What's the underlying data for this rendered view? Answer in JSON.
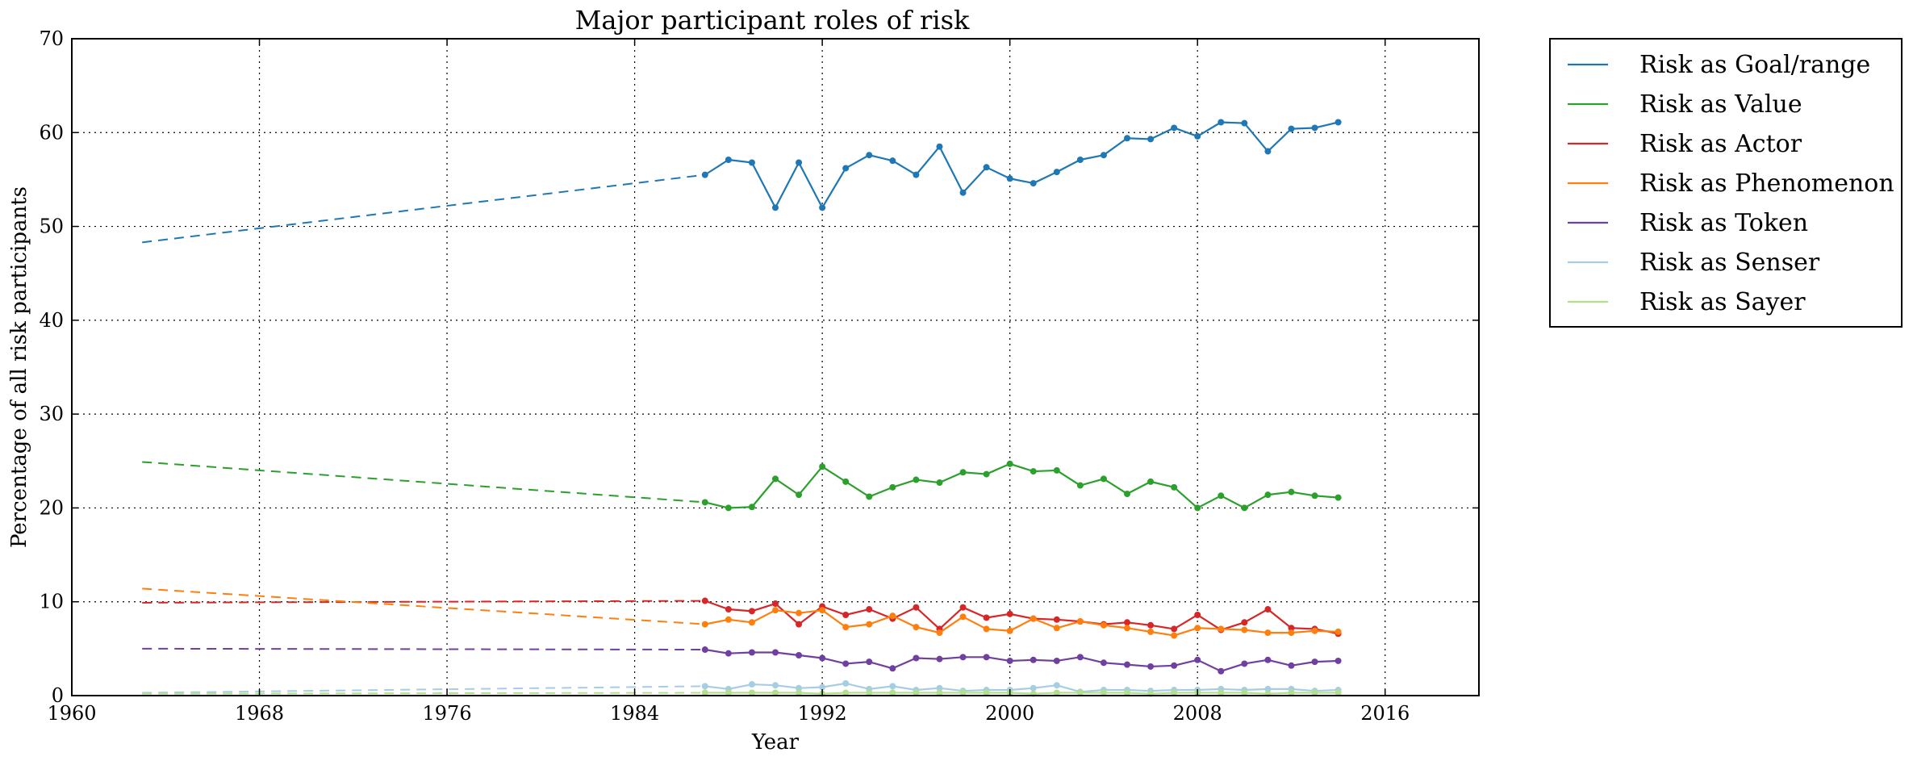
{
  "chart_data": {
    "type": "line",
    "title": "Major participant roles of risk",
    "xlabel": "Year",
    "ylabel": "Percentage of all risk participants",
    "xlim": [
      1960,
      2020
    ],
    "ylim": [
      0,
      70
    ],
    "xticks": [
      1960,
      1968,
      1976,
      1984,
      1992,
      2000,
      2008,
      2016
    ],
    "yticks": [
      0,
      10,
      20,
      30,
      40,
      50,
      60,
      70
    ],
    "grid": true,
    "grid_style": "dotted",
    "legend_position": "outside-top-right",
    "x": [
      1987,
      1988,
      1989,
      1990,
      1991,
      1992,
      1993,
      1994,
      1995,
      1996,
      1997,
      1998,
      1999,
      2000,
      2001,
      2002,
      2003,
      2004,
      2005,
      2006,
      2007,
      2008,
      2009,
      2010,
      2011,
      2012,
      2013,
      2014
    ],
    "series": [
      {
        "name": "Risk as Goal/range",
        "color": "#1f77b4",
        "values": [
          55.5,
          57.1,
          56.8,
          52.0,
          56.8,
          52.0,
          56.2,
          57.6,
          57.0,
          55.5,
          58.5,
          53.6,
          56.3,
          55.1,
          54.6,
          55.8,
          57.1,
          57.6,
          59.4,
          59.3,
          60.5,
          59.6,
          61.1,
          61.0,
          58.0,
          60.4,
          60.5,
          61.1
        ],
        "trend": {
          "x": [
            1963,
            1987
          ],
          "y": [
            48.3,
            55.5
          ]
        }
      },
      {
        "name": "Risk as Value",
        "color": "#2ca02c",
        "values": [
          20.6,
          20.0,
          20.1,
          23.1,
          21.4,
          24.4,
          22.8,
          21.2,
          22.2,
          23.0,
          22.7,
          23.8,
          23.6,
          24.7,
          23.9,
          24.0,
          22.4,
          23.1,
          21.5,
          22.8,
          22.2,
          20.0,
          21.3,
          20.0,
          21.4,
          21.7,
          21.3,
          21.1
        ],
        "trend": {
          "x": [
            1963,
            1987
          ],
          "y": [
            24.9,
            20.6
          ]
        }
      },
      {
        "name": "Risk as Actor",
        "color": "#d62728",
        "values": [
          10.1,
          9.2,
          9.0,
          9.8,
          7.6,
          9.5,
          8.6,
          9.2,
          8.2,
          9.4,
          7.1,
          9.4,
          8.3,
          8.7,
          8.2,
          8.1,
          7.9,
          7.6,
          7.8,
          7.5,
          7.1,
          8.6,
          7.0,
          7.8,
          9.2,
          7.2,
          7.1,
          6.6
        ],
        "trend": {
          "x": [
            1963,
            1987
          ],
          "y": [
            9.9,
            10.1
          ]
        }
      },
      {
        "name": "Risk as Phenomenon",
        "color": "#ff7f0e",
        "values": [
          7.6,
          8.1,
          7.8,
          9.1,
          8.8,
          9.1,
          7.3,
          7.6,
          8.5,
          7.3,
          6.7,
          8.4,
          7.1,
          6.9,
          8.2,
          7.2,
          7.9,
          7.5,
          7.2,
          6.8,
          6.4,
          7.2,
          7.1,
          7.0,
          6.7,
          6.7,
          6.9,
          6.8
        ],
        "trend": {
          "x": [
            1963,
            1987
          ],
          "y": [
            11.4,
            7.6
          ]
        }
      },
      {
        "name": "Risk as Token",
        "color": "#7040a0",
        "values": [
          4.9,
          4.5,
          4.6,
          4.6,
          4.3,
          4.0,
          3.4,
          3.6,
          2.9,
          4.0,
          3.9,
          4.1,
          4.1,
          3.7,
          3.8,
          3.7,
          4.1,
          3.5,
          3.3,
          3.1,
          3.2,
          3.8,
          2.6,
          3.4,
          3.8,
          3.2,
          3.6,
          3.7
        ],
        "trend": {
          "x": [
            1963,
            1987
          ],
          "y": [
            5.0,
            4.9
          ]
        }
      },
      {
        "name": "Risk as Senser",
        "color": "#a6cee3",
        "values": [
          1.0,
          0.7,
          1.2,
          1.1,
          0.8,
          0.9,
          1.3,
          0.7,
          1.0,
          0.6,
          0.8,
          0.5,
          0.6,
          0.6,
          0.8,
          1.1,
          0.4,
          0.6,
          0.6,
          0.5,
          0.6,
          0.6,
          0.7,
          0.6,
          0.7,
          0.7,
          0.5,
          0.6
        ],
        "trend": {
          "x": [
            1963,
            1987
          ],
          "y": [
            0.3,
            1.0
          ]
        }
      },
      {
        "name": "Risk as Sayer",
        "color": "#b2df8a",
        "values": [
          0.3,
          0.3,
          0.3,
          0.3,
          0.3,
          0.2,
          0.3,
          0.3,
          0.3,
          0.3,
          0.3,
          0.3,
          0.3,
          0.3,
          0.2,
          0.3,
          0.3,
          0.3,
          0.3,
          0.2,
          0.3,
          0.3,
          0.3,
          0.3,
          0.2,
          0.3,
          0.3,
          0.3
        ],
        "trend": {
          "x": [
            1963,
            1987
          ],
          "y": [
            0.2,
            0.3
          ]
        }
      }
    ]
  }
}
